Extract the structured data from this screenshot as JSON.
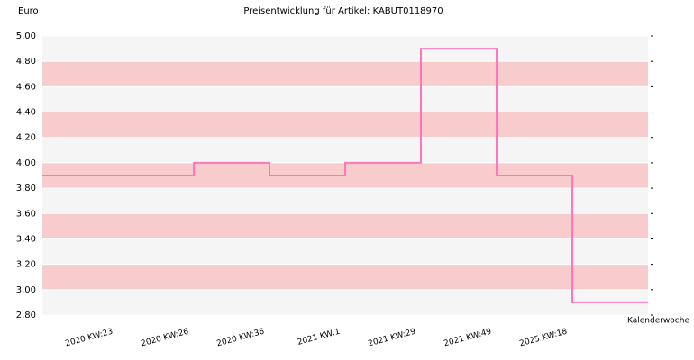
{
  "chart_data": {
    "type": "step",
    "title": "Preisentwicklung für Artikel: KABUT0118970",
    "y_label": "Euro",
    "x_label": "Kalenderwoche",
    "categories": [
      "2020 KW:23",
      "2020 KW:26",
      "2020 KW:36",
      "2021 KW:1",
      "2021 KW:29",
      "2021 KW:49",
      "2025 KW:18"
    ],
    "values": [
      3.9,
      4.0,
      3.9,
      4.0,
      4.9,
      3.9,
      2.9
    ],
    "color": "#ff77bb",
    "band_colors": [
      "#f5f5f5",
      "#f8cccc"
    ],
    "ylim": [
      2.8,
      5.0
    ],
    "yticks": [
      {
        "value": 2.8,
        "label": "2.80"
      },
      {
        "value": 3.0,
        "label": "3.00"
      },
      {
        "value": 3.2,
        "label": "3.20"
      },
      {
        "value": 3.4,
        "label": "3.40"
      },
      {
        "value": 3.6,
        "label": "3.60"
      },
      {
        "value": 3.8,
        "label": "3.80"
      },
      {
        "value": 4.0,
        "label": "4.00"
      },
      {
        "value": 4.2,
        "label": "4.20"
      },
      {
        "value": 4.4,
        "label": "4.40"
      },
      {
        "value": 4.6,
        "label": "4.60"
      },
      {
        "value": 4.8,
        "label": "4.80"
      },
      {
        "value": 5.0,
        "label": "5.00"
      }
    ]
  }
}
